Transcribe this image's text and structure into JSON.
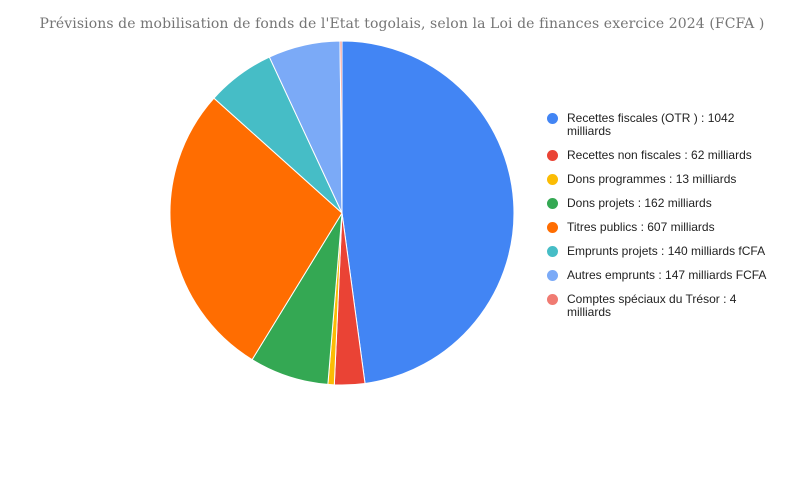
{
  "chart_data": {
    "type": "pie",
    "title": "Prévisions de mobilisation de fonds de l'Etat togolais, selon la Loi de finances exercice 2024  (FCFA )",
    "legend_position": "right",
    "slices": [
      {
        "label": "Recettes fiscales (OTR ) : 1042 milliards",
        "value": 1042,
        "color": "#4285f4"
      },
      {
        "label": "Recettes non fiscales : 62 milliards",
        "value": 62,
        "color": "#ea4335"
      },
      {
        "label": "Dons programmes : 13 milliards",
        "value": 13,
        "color": "#fbbc04"
      },
      {
        "label": "Dons projets : 162 milliards",
        "value": 162,
        "color": "#34a853"
      },
      {
        "label": "Titres publics : 607 milliards",
        "value": 607,
        "color": "#ff6d01"
      },
      {
        "label": "Emprunts projets : 140 milliards fCFA",
        "value": 140,
        "color": "#46bdc6"
      },
      {
        "label": "Autres emprunts : 147 milliards FCFA",
        "value": 147,
        "color": "#7baaf7"
      },
      {
        "label": "Comptes spéciaux du Trésor : 4 milliards",
        "value": 4,
        "color": "#f07b72"
      }
    ]
  }
}
